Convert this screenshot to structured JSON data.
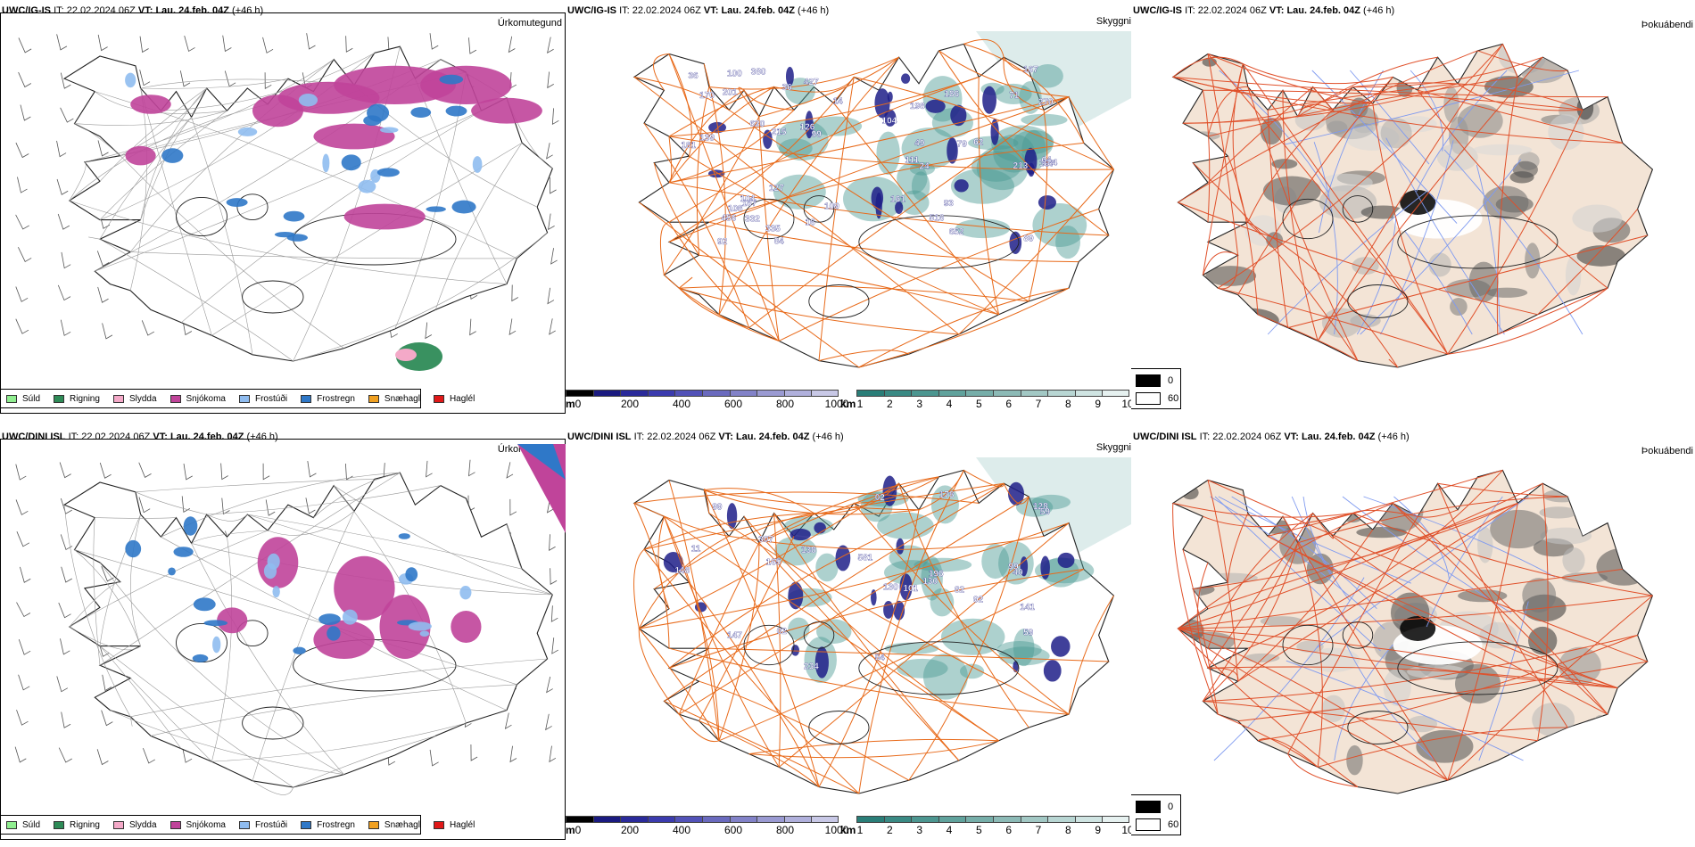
{
  "rows": [
    {
      "model": "UWC/IG-IS",
      "it_label": "IT:",
      "it_value": "22.02.2024 06Z",
      "vt_label": "VT:",
      "vt_value": "Lau. 24.feb. 04Z",
      "lead": "(+46 h)",
      "panel_titles": [
        "Úrkomutegund",
        "Skyggni",
        "Þokuábendi"
      ],
      "visibility_labels": [
        "620",
        "456",
        "213",
        "215",
        "652",
        "380",
        "332",
        "397",
        "516",
        "427",
        "100",
        "104",
        "181",
        "93",
        "187",
        "198",
        "167",
        "124",
        "109",
        "170",
        "92",
        "79",
        "111",
        "139",
        "64",
        "62",
        "201",
        "99",
        "270",
        "24",
        "126",
        "14",
        "89",
        "104",
        "161",
        "127",
        "335",
        "186",
        "36",
        "71",
        "108",
        "49",
        "16",
        "84",
        "36"
      ],
      "fog_value_max": "0",
      "fog_value_min": "60"
    },
    {
      "model": "UWC/DINI ISL",
      "it_label": "IT:",
      "it_value": "22.02.2024 06Z",
      "vt_label": "VT:",
      "vt_value": "Lau. 24.feb. 04Z",
      "lead": "(+46 h)",
      "panel_titles": [
        "Úrkomutegund",
        "Skyggni",
        "Þokuábendi"
      ],
      "visibility_labels": [
        "54",
        "581",
        "02",
        "141",
        "130",
        "196",
        "178",
        "147",
        "99",
        "165",
        "130",
        "307",
        "128",
        "234",
        "138",
        "148",
        "101",
        "92",
        "59",
        "82",
        "99",
        "40",
        "11",
        "59",
        "02"
      ],
      "fog_value_max": "0",
      "fog_value_min": "60"
    }
  ],
  "precip_legend": [
    {
      "label": "Súld",
      "color": "#90ee90"
    },
    {
      "label": "Rigning",
      "color": "#2e8b57"
    },
    {
      "label": "Slydda",
      "color": "#f4a9c8"
    },
    {
      "label": "Snjókoma",
      "color": "#c0449a"
    },
    {
      "label": "Frostúði",
      "color": "#8fbcf0"
    },
    {
      "label": "Frostregn",
      "color": "#2f78c8"
    },
    {
      "label": "Snæhagl",
      "color": "#f0a020"
    },
    {
      "label": "Haglél",
      "color": "#e01818"
    }
  ],
  "height_scale": {
    "unit": "m",
    "ticks": [
      "0",
      "200",
      "400",
      "600",
      "800",
      "1000"
    ],
    "colors": [
      "#000000",
      "#1a1a80",
      "#2a2a9a",
      "#3b3bae",
      "#5252b8",
      "#6a6abe",
      "#8282c8",
      "#9a9ad2",
      "#b0b0dc",
      "#c8c8e6"
    ]
  },
  "distance_scale": {
    "unit": "km",
    "ticks": [
      "1",
      "2",
      "3",
      "4",
      "5",
      "6",
      "7",
      "8",
      "9",
      "10"
    ],
    "colors": [
      "#2a7e78",
      "#3a8a84",
      "#4c9690",
      "#60a29c",
      "#76aea9",
      "#8cbab6",
      "#a2c8c4",
      "#b8d6d3",
      "#cfe4e2",
      "#e6f1f0"
    ]
  },
  "colors": {
    "coast": "#222222",
    "road": "#e86a1a",
    "roadFog": "#e0502a",
    "river": "#7f9af0",
    "land": "#f3e4d6",
    "snow": "#c0449a",
    "frost": "#8fbcf0",
    "frostRain": "#2f78c8",
    "rain": "#2e8b57",
    "sleet": "#f4a9c8",
    "visDark": "#1f1f88",
    "visTeal": "#4a9a92"
  }
}
